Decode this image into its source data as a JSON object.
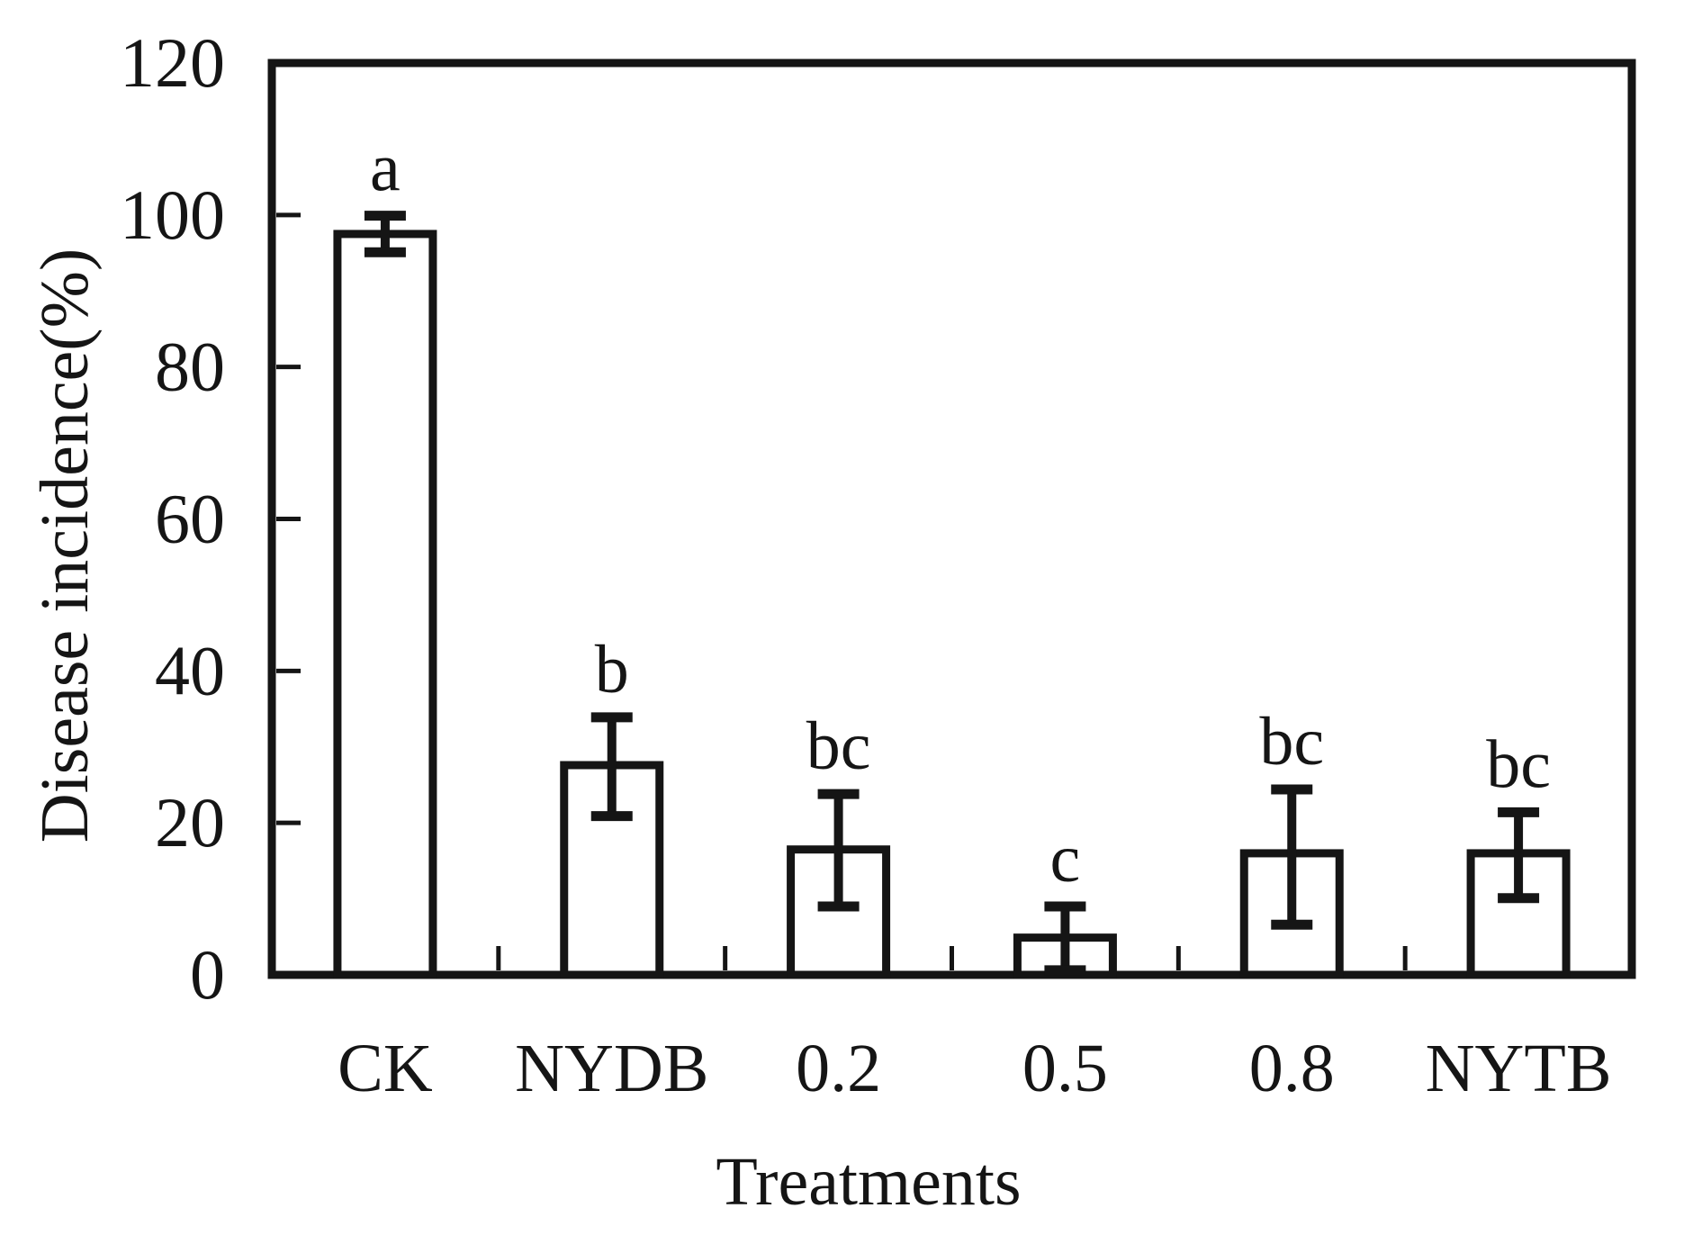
{
  "chart_data": {
    "type": "bar",
    "title": "",
    "xlabel": "Treatments",
    "ylabel": "Disease incidence(%)",
    "ylim": [
      0,
      120
    ],
    "yticks": [
      0,
      20,
      40,
      60,
      80,
      100,
      120
    ],
    "categories": [
      "CK",
      "NYDB",
      "0.2",
      "0.5",
      "0.8",
      "NYTB"
    ],
    "values": [
      97.5,
      27.6,
      16.5,
      4.9,
      16.0,
      16.0
    ],
    "error_up": [
      2.4,
      6.3,
      7.3,
      4.1,
      8.4,
      5.4
    ],
    "error_down": [
      2.4,
      6.7,
      7.5,
      4.3,
      9.4,
      5.9
    ],
    "sig_letters": [
      "a",
      "b",
      "bc",
      "c",
      "bc",
      "bc"
    ],
    "legend": "none",
    "grid": false,
    "bar_fill": "#ffffff",
    "stroke_color": "#151515",
    "background_color": "#ffffff"
  }
}
